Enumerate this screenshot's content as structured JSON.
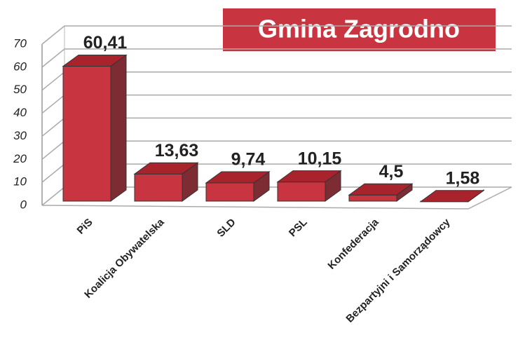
{
  "chart_data": {
    "type": "bar3d",
    "title": "Gmina Zagrodno",
    "categories": [
      "PiS",
      "Koalicja Obywatelska",
      "SLD",
      "PSL",
      "Konfederacja",
      "Bezpartyjni i Samorządowcy"
    ],
    "values": [
      60.41,
      13.63,
      9.74,
      10.15,
      4.5,
      1.58
    ],
    "value_labels": [
      "60,41",
      "13,63",
      "9,74",
      "10,15",
      "4,5",
      "1,58"
    ],
    "color": "#c8343f",
    "ylim": [
      0,
      70
    ],
    "yticks": [
      0,
      10,
      20,
      30,
      40,
      50,
      60,
      70
    ],
    "grid": true
  }
}
